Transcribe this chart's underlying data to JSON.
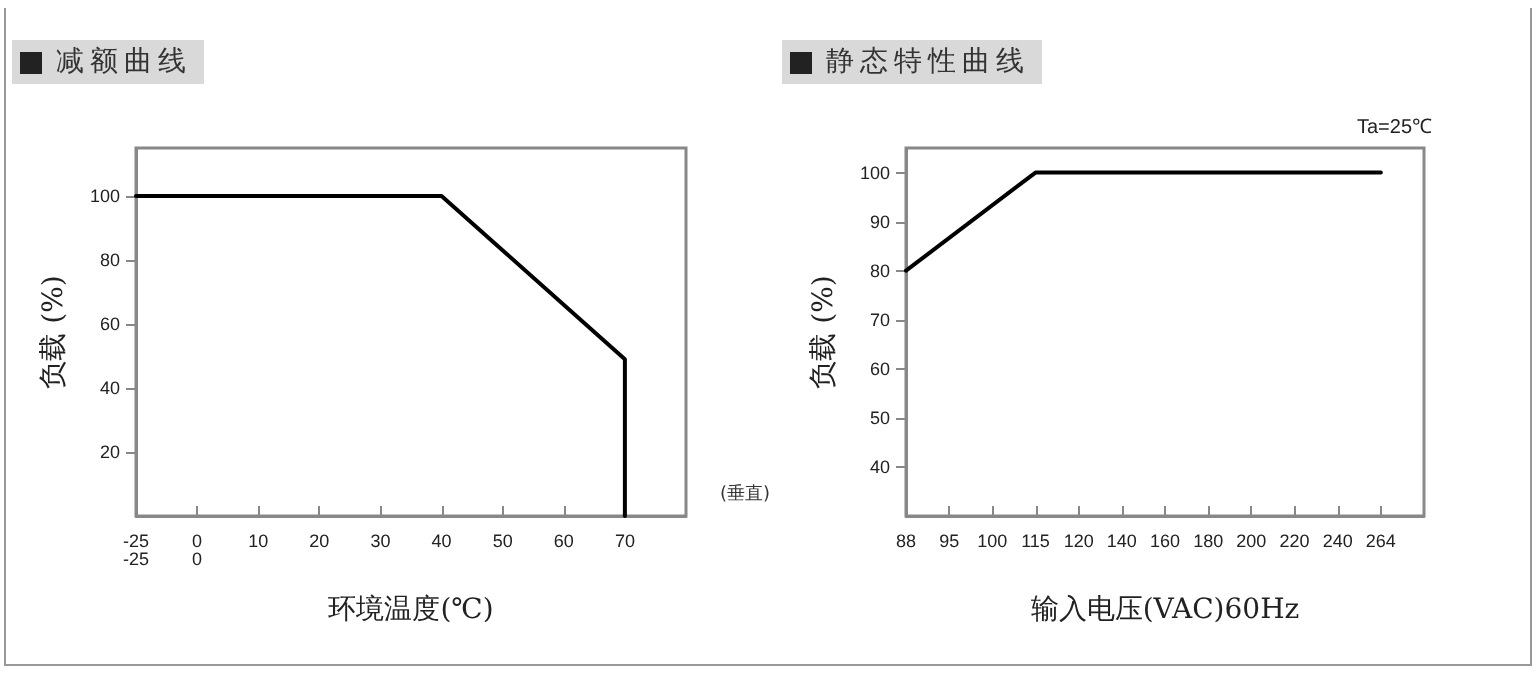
{
  "chart_data": [
    {
      "type": "line",
      "title": "减额曲线",
      "xlabel": "环境温度(℃)",
      "ylabel": "负载 (%)",
      "categories": [
        "-25\n-25",
        "0\n0",
        "10",
        "20",
        "30",
        "40",
        "50",
        "60",
        "70",
        null
      ],
      "series": [
        {
          "color": "#000000",
          "x": [
            "-25\n-25",
            "40",
            "70",
            "70"
          ],
          "values": [
            100,
            100,
            49,
            0
          ]
        }
      ],
      "ylim": [
        0,
        115
      ],
      "yticks": [
        20,
        40,
        60,
        80,
        100
      ],
      "annotations": [
        "(垂直)"
      ],
      "grid": false,
      "marker": "none",
      "line_style": "solid"
    },
    {
      "type": "line",
      "title": "静态特性曲线",
      "xlabel": "输入电压(VAC)60Hz",
      "ylabel": "负载 (%)",
      "categories": [
        "88",
        "95",
        "100",
        "115",
        "120",
        "140",
        "160",
        "180",
        "200",
        "220",
        "240",
        "264",
        null
      ],
      "series": [
        {
          "color": "#000000",
          "x": [
            "88",
            "115",
            "264"
          ],
          "values": [
            80,
            100,
            100
          ]
        }
      ],
      "ylim": [
        30,
        105
      ],
      "yticks": [
        40,
        50,
        60,
        70,
        80,
        90,
        100
      ],
      "annotations": [
        "Ta=25℃"
      ],
      "grid": false,
      "marker": "none",
      "line_style": "solid"
    }
  ]
}
